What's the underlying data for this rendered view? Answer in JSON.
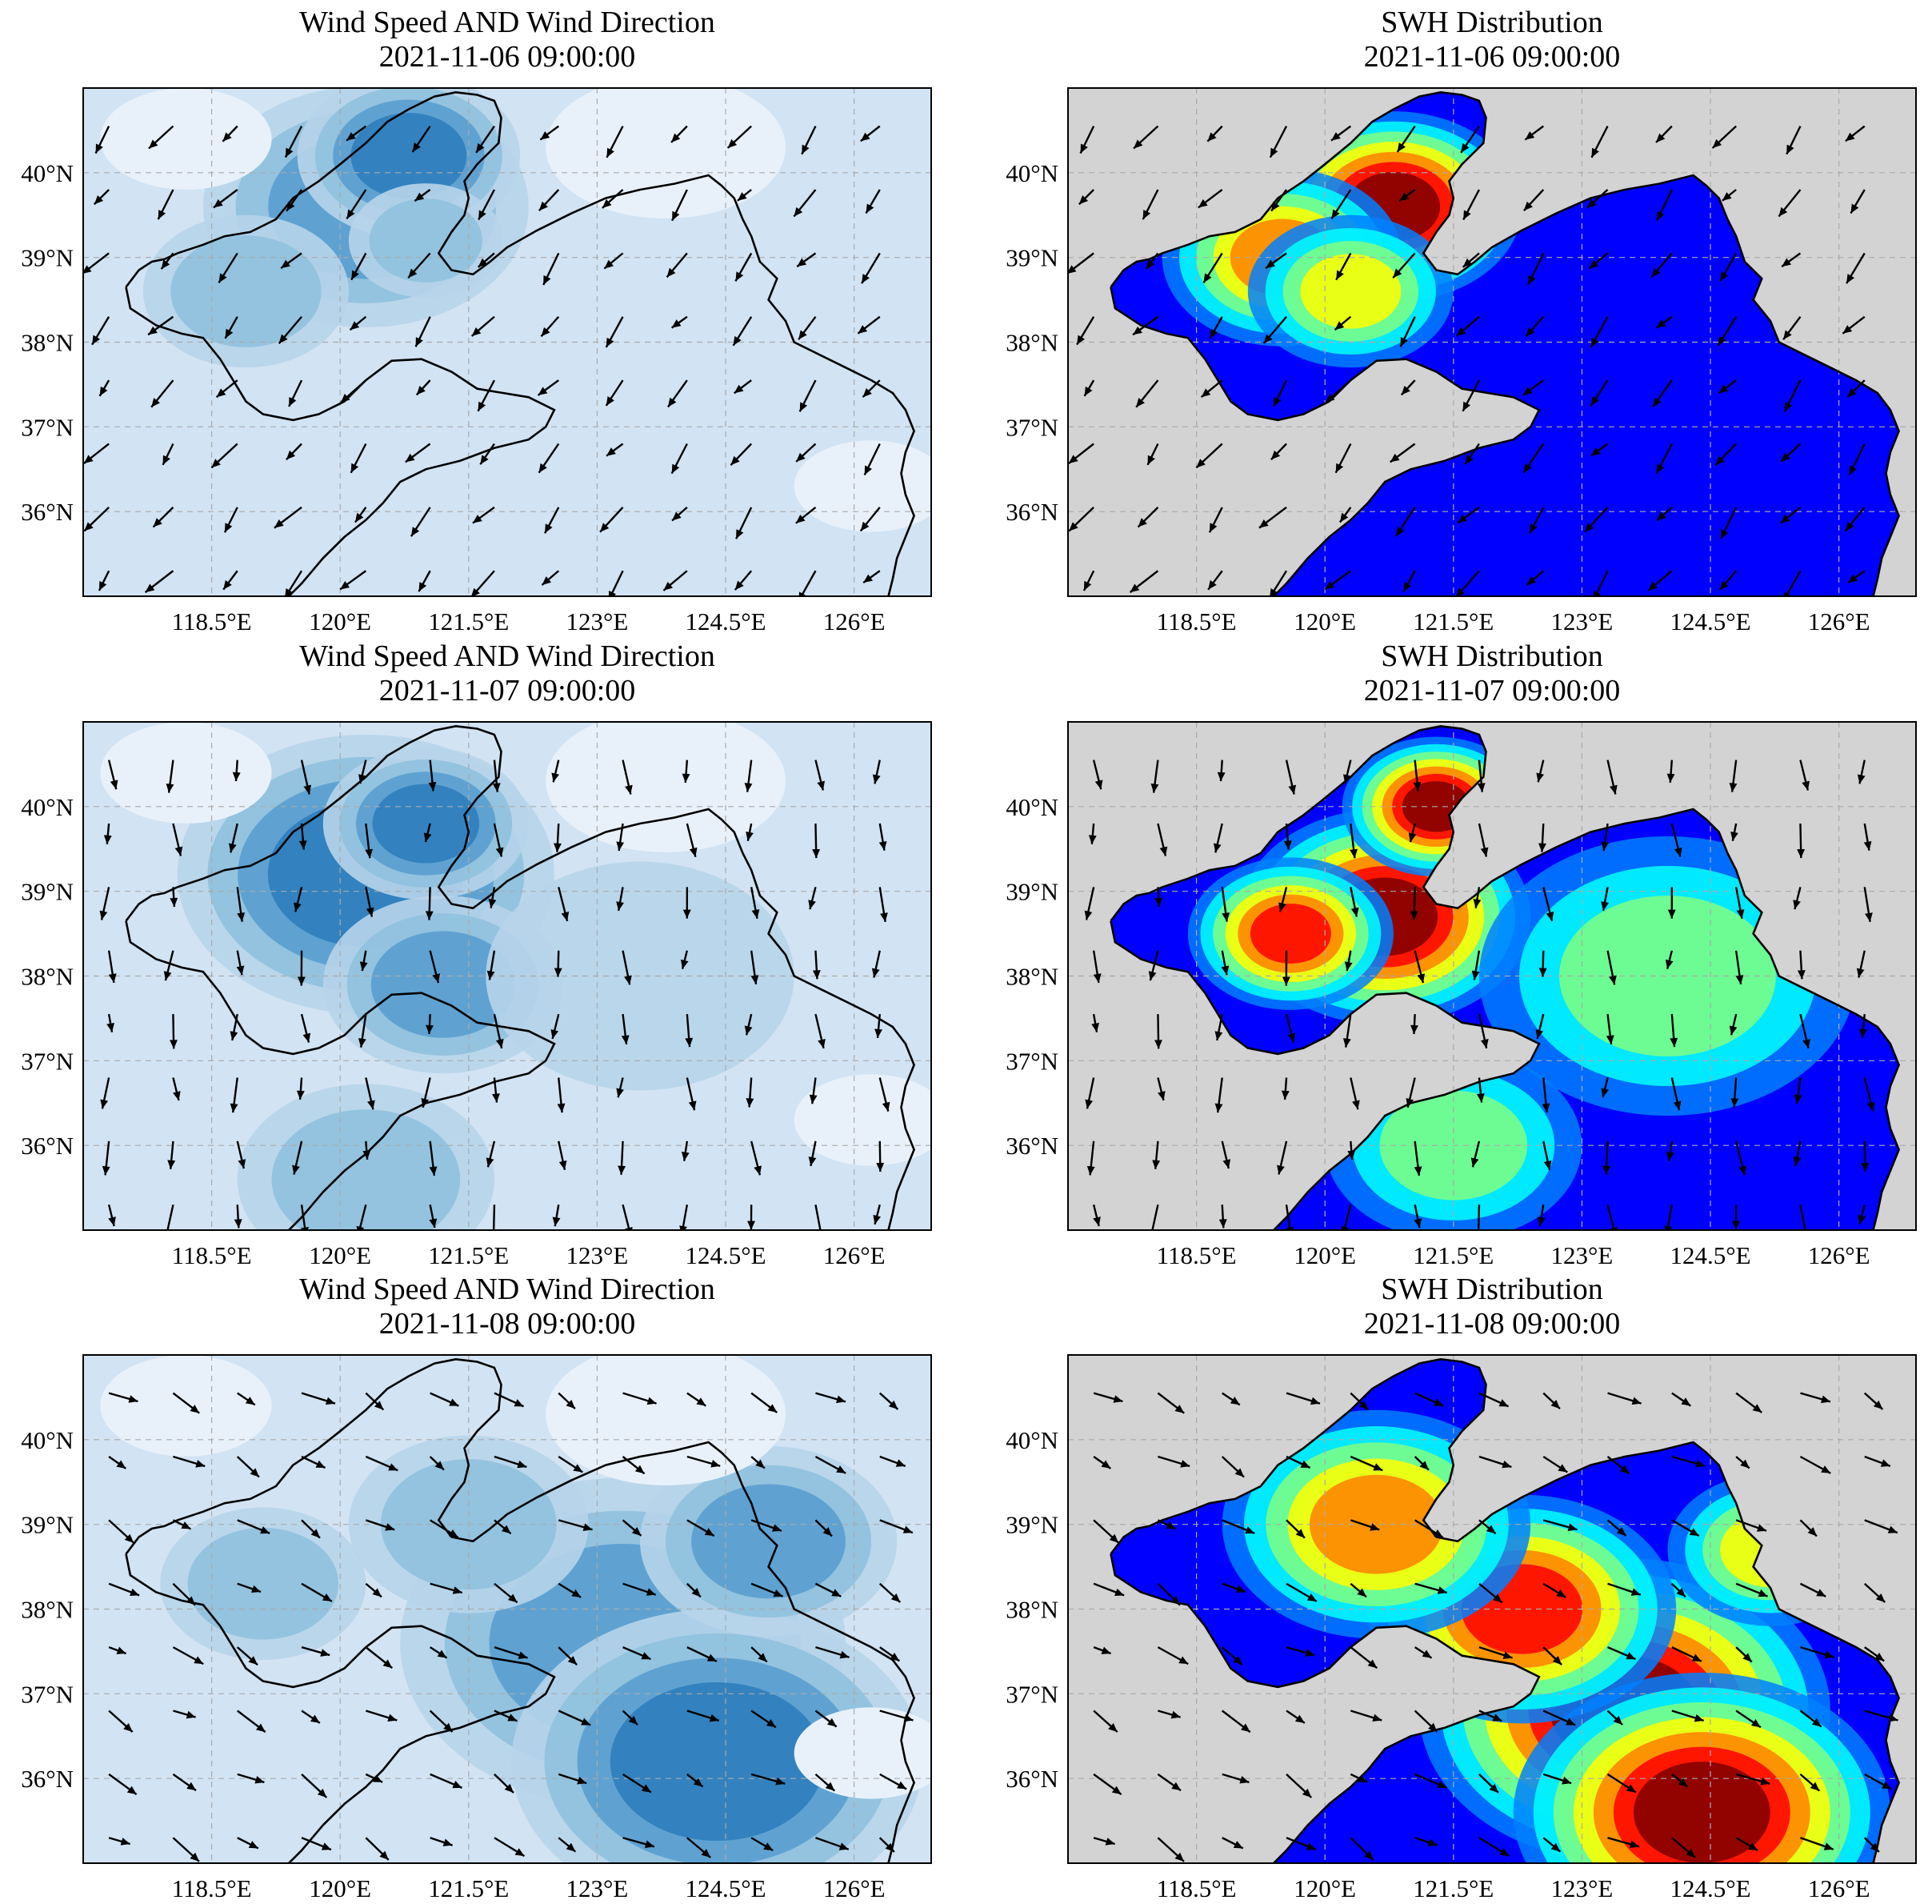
{
  "figure": {
    "panels": [
      {
        "id": "wind-2021-11-06",
        "kind": "wind",
        "row": 0,
        "col": 0,
        "title": "Wind Speed AND Wind Direction",
        "subtitle": "2021-11-06 09:00:00",
        "mean_dir_deg": 220
      },
      {
        "id": "swh-2021-11-06",
        "kind": "swh",
        "row": 0,
        "col": 1,
        "title": "SWH Distribution",
        "subtitle": "2021-11-06 09:00:00",
        "mean_dir_deg": 220
      },
      {
        "id": "wind-2021-11-07",
        "kind": "wind",
        "row": 1,
        "col": 0,
        "title": "Wind Speed AND Wind Direction",
        "subtitle": "2021-11-07 09:00:00",
        "mean_dir_deg": 180
      },
      {
        "id": "swh-2021-11-07",
        "kind": "swh",
        "row": 1,
        "col": 1,
        "title": "SWH Distribution",
        "subtitle": "2021-11-07 09:00:00",
        "mean_dir_deg": 180
      },
      {
        "id": "wind-2021-11-08",
        "kind": "wind",
        "row": 2,
        "col": 0,
        "title": "Wind Speed AND Wind Direction",
        "subtitle": "2021-11-08 09:00:00",
        "mean_dir_deg": 120
      },
      {
        "id": "swh-2021-11-08",
        "kind": "swh",
        "row": 2,
        "col": 1,
        "title": "SWH Distribution",
        "subtitle": "2021-11-08 09:00:00",
        "mean_dir_deg": 120
      }
    ],
    "axes": {
      "lon_range": [
        117,
        126.9
      ],
      "lat_range": [
        35,
        41
      ],
      "lon_ticks": [
        "118.5°E",
        "120°E",
        "121.5°E",
        "123°E",
        "124.5°E",
        "126°E"
      ],
      "lon_tick_values": [
        118.5,
        120,
        121.5,
        123,
        124.5,
        126
      ],
      "lat_ticks": [
        "40°N",
        "39°N",
        "38°N",
        "37°N",
        "36°N"
      ],
      "lat_tick_values": [
        40,
        39,
        38,
        37,
        36
      ],
      "grid": true
    },
    "colors": {
      "wind_levels": [
        "#e8f1fa",
        "#d2e3f3",
        "#b7d4ea",
        "#8fc1de",
        "#5a9fd0",
        "#2f7ebc",
        "#135fa5"
      ],
      "swh_land": "#d3d3d3",
      "coast": "#000000",
      "grid": "#aaaaaa",
      "arrow": "#000000"
    }
  }
}
